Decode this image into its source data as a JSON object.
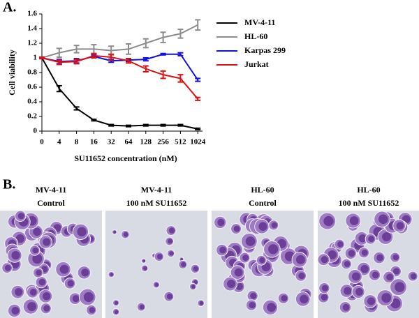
{
  "panel_a": "A.",
  "panel_b": "B.",
  "chart_data": {
    "type": "line",
    "ylabel": "Cell viability",
    "xlabel": "SU11652 concentration (nM)",
    "categories": [
      "0",
      "4",
      "8",
      "16",
      "32",
      "64",
      "128",
      "256",
      "512",
      "1024"
    ],
    "ylim": [
      0,
      1.6
    ],
    "yticks": [
      0,
      0.2,
      0.4,
      0.6,
      0.8,
      1,
      1.2,
      1.4,
      1.6
    ],
    "legend": "right",
    "series": [
      {
        "name": "MV-4-11",
        "color": "#000000",
        "values": [
          1.0,
          0.58,
          0.31,
          0.15,
          0.08,
          0.07,
          0.08,
          0.08,
          0.08,
          0.03
        ],
        "errors": [
          0.01,
          0.04,
          0.02,
          0.01,
          0.01,
          0.01,
          0.01,
          0.01,
          0.01,
          0.01
        ]
      },
      {
        "name": "HL-60",
        "color": "#8c8c8c",
        "values": [
          1.0,
          1.07,
          1.12,
          1.12,
          1.1,
          1.12,
          1.2,
          1.28,
          1.33,
          1.45
        ],
        "errors": [
          0.01,
          0.06,
          0.05,
          0.06,
          0.06,
          0.07,
          0.06,
          0.07,
          0.06,
          0.07
        ]
      },
      {
        "name": "Karpas 299",
        "color": "#1010e0",
        "values": [
          1.0,
          0.95,
          0.96,
          1.02,
          0.96,
          0.97,
          0.98,
          1.05,
          1.05,
          0.7
        ],
        "errors": [
          0.01,
          0.03,
          0.03,
          0.02,
          0.02,
          0.02,
          0.02,
          0.01,
          0.02,
          0.02
        ]
      },
      {
        "name": "Jurkat",
        "color": "#e01010",
        "values": [
          1.0,
          0.94,
          0.95,
          1.03,
          1.01,
          0.96,
          0.85,
          0.77,
          0.72,
          0.44
        ],
        "errors": [
          0.01,
          0.03,
          0.03,
          0.03,
          0.04,
          0.03,
          0.04,
          0.05,
          0.05,
          0.02
        ]
      }
    ]
  },
  "images": [
    {
      "line1": "MV-4-11",
      "line2": "Control"
    },
    {
      "line1": "MV-4-11",
      "line2": "100 nM SU11652"
    },
    {
      "line1": "HL-60",
      "line2": "Control"
    },
    {
      "line1": "HL-60",
      "line2": "100 nM SU11652"
    }
  ]
}
